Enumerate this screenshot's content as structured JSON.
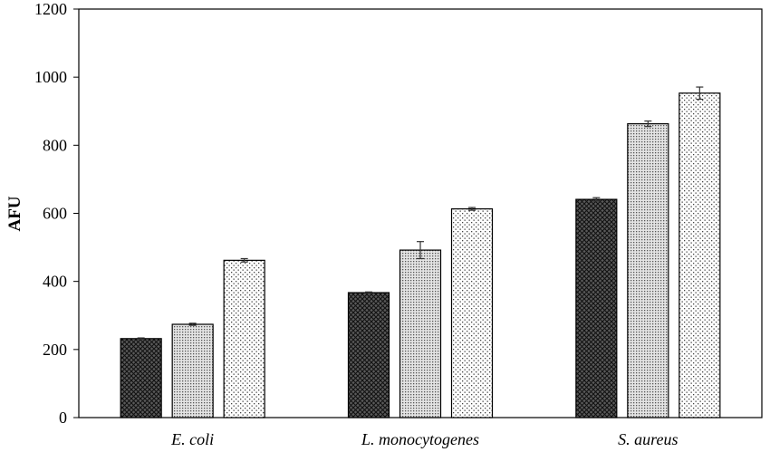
{
  "chart_data": {
    "type": "bar",
    "title": "",
    "xlabel": "",
    "ylabel": "AFU",
    "ylim": [
      0,
      1200
    ],
    "yticks": [
      0,
      200,
      400,
      600,
      800,
      1000,
      1200
    ],
    "ytick_labels": [
      "0",
      "200",
      "400",
      "600",
      "800",
      "1000",
      "1200"
    ],
    "categories": [
      "E. coli",
      "L. monocytogenes",
      "S. aureus"
    ],
    "grid": false,
    "legend": "none",
    "series": [
      {
        "values": [
          232,
          367,
          641
        ],
        "errors": [
          2,
          2,
          5
        ],
        "pattern": "crosshatch-dark",
        "color": "#3a3a3a"
      },
      {
        "values": [
          274,
          492,
          863
        ],
        "errors": [
          3,
          25,
          8
        ],
        "pattern": "dots-dense",
        "color": "#9a9a9a"
      },
      {
        "values": [
          462,
          613,
          953
        ],
        "errors": [
          5,
          4,
          18
        ],
        "pattern": "dots-sparse",
        "color": "#ffffff"
      }
    ]
  }
}
